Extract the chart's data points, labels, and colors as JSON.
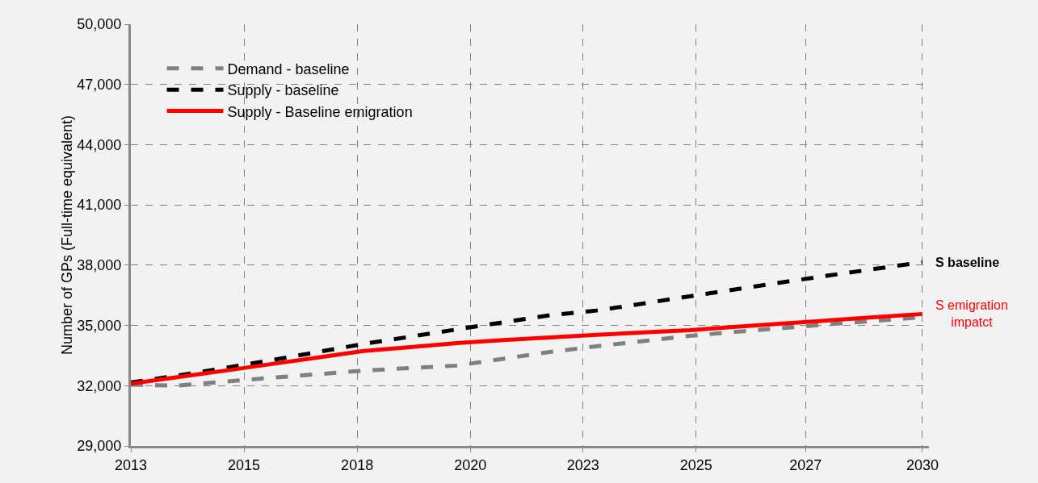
{
  "chart_data": {
    "type": "line",
    "ylabel": "Number of GPs (Full-time equivalent)",
    "x": [
      2013,
      2014,
      2015,
      2016,
      2017,
      2018,
      2019,
      2020,
      2021,
      2022,
      2023,
      2024,
      2025,
      2026,
      2027,
      2028,
      2029,
      2030
    ],
    "series": [
      {
        "name": "Demand - baseline",
        "color": "#808080",
        "line_style": "dashed",
        "values": [
          32050,
          32000,
          32200,
          32390,
          32570,
          32750,
          32880,
          33000,
          33340,
          33680,
          33960,
          34220,
          34480,
          34680,
          34870,
          35060,
          35230,
          35410
        ]
      },
      {
        "name": "Supply - baseline",
        "color": "#000000",
        "line_style": "dashed",
        "values": [
          32160,
          32500,
          32870,
          33260,
          33670,
          34080,
          34440,
          34800,
          35160,
          35510,
          35740,
          36090,
          36450,
          36800,
          37150,
          37490,
          37820,
          38150
        ]
      },
      {
        "name": "Supply - Baseline emigration",
        "color": "#ff0000",
        "line_style": "solid",
        "values": [
          32100,
          32420,
          32740,
          33070,
          33400,
          33730,
          33920,
          34120,
          34270,
          34400,
          34530,
          34650,
          34760,
          34930,
          35090,
          35250,
          35410,
          35570
        ]
      }
    ],
    "annotations": [
      {
        "text": "S baseline",
        "x": 2030,
        "y": 38150
      },
      {
        "text": "S emigration impatct",
        "x": 2030,
        "y": 35570
      }
    ],
    "xlim": [
      2013,
      2030.14
    ],
    "xticks": [
      2013,
      {
        "value": 2015.43,
        "label": "2015"
      },
      {
        "value": 2017.86,
        "label": "2018"
      },
      {
        "value": 2020.29,
        "label": "2020"
      },
      {
        "value": 2022.71,
        "label": "2023"
      },
      {
        "value": 2025.14,
        "label": "2025"
      },
      {
        "value": 2027.49,
        "label": "2027"
      },
      2030
    ],
    "ylim": [
      29000,
      50000
    ],
    "yticks": [
      {
        "value": 29000,
        "label": "29,000"
      },
      {
        "value": 32000,
        "label": "32,000"
      },
      {
        "value": 35000,
        "label": "35,000"
      },
      {
        "value": 38000,
        "label": "38,000"
      },
      {
        "value": 41000,
        "label": "41,000"
      },
      {
        "value": 44000,
        "label": "44,000"
      },
      {
        "value": 47000,
        "label": "47,000"
      },
      {
        "value": 50000,
        "label": "50,000"
      }
    ],
    "grid": true,
    "legend": "top left"
  }
}
